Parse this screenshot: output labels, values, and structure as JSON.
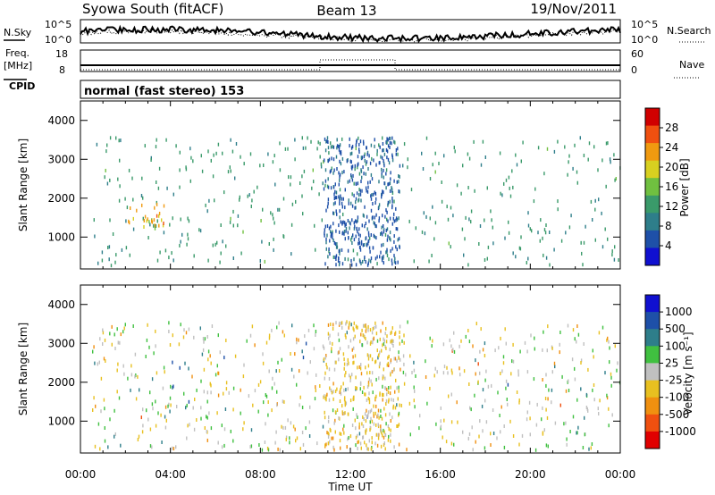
{
  "header": {
    "station": "Syowa South (fitACF)",
    "beam": "Beam 13",
    "date": "19/Nov/2011"
  },
  "top_panels": {
    "nsky_label": "N.Sky",
    "nsky_ticks": [
      "10^5",
      "10^0"
    ],
    "nsearch_label": "N.Search",
    "nsearch_ticks": [
      "10^5",
      "10^0"
    ],
    "freq_label": "Freq.",
    "freq_unit": "[MHz]",
    "freq_ticks": [
      "18",
      "8"
    ],
    "nave_label": "Nave",
    "nave_ticks": [
      "60",
      "0"
    ],
    "cpid_label": "CPID",
    "cpid_text": "normal (fast stereo) 153"
  },
  "colors": {
    "power_scale": [
      "#1010d0",
      "#1e50a8",
      "#2e7e8a",
      "#3a9a6a",
      "#70c040",
      "#d8d020",
      "#f09a10",
      "#f05010",
      "#d00000"
    ],
    "velocity_scale": [
      "#1010d0",
      "#1e50a8",
      "#2e7e8a",
      "#40c040",
      "#c0c0c0",
      "#e8c020",
      "#f09010",
      "#f05010",
      "#e00000"
    ]
  },
  "chart_data": [
    {
      "type": "heatmap",
      "name": "power",
      "ylabel": "Slant Range [km]",
      "xlabel": "Time UT",
      "x_ticks": [
        "00:00",
        "04:00",
        "08:00",
        "12:00",
        "16:00",
        "20:00",
        "00:00"
      ],
      "y_ticks": [
        "1000",
        "2000",
        "3000",
        "4000"
      ],
      "xlim_hours": [
        0,
        24
      ],
      "ylim_km": [
        180,
        4500
      ],
      "colorbar_label": "Power [dB]",
      "colorbar_ticks": [
        "28",
        "24",
        "20",
        "16",
        "12",
        "8",
        "4"
      ],
      "colorbar_range": [
        0,
        30
      ],
      "regions": [
        {
          "t0": 0.5,
          "t1": 24,
          "r0": 300,
          "r1": 3600,
          "level": 11,
          "spread": 4,
          "density": 0.55
        },
        {
          "t0": 2.0,
          "t1": 3.8,
          "r0": 1300,
          "r1": 1900,
          "level": 20,
          "spread": 6,
          "density": 2.5
        },
        {
          "t0": 10.8,
          "t1": 14.2,
          "r0": 300,
          "r1": 3600,
          "level": 6,
          "spread": 3,
          "density": 4.0
        }
      ]
    },
    {
      "type": "heatmap",
      "name": "velocity",
      "ylabel": "Slant Range [km]",
      "xlabel": "Time UT",
      "x_ticks": [
        "00:00",
        "04:00",
        "08:00",
        "12:00",
        "16:00",
        "20:00",
        "00:00"
      ],
      "y_ticks": [
        "1000",
        "2000",
        "3000",
        "4000"
      ],
      "xlim_hours": [
        0,
        24
      ],
      "ylim_km": [
        180,
        4500
      ],
      "colorbar_label": "Velocity [m s⁻¹]",
      "colorbar_ticks": [
        "1000",
        "500",
        "100",
        "25",
        "-25",
        "-100",
        "-500",
        "-1000"
      ],
      "colorbar_range": [
        -1200,
        1200
      ],
      "regions": [
        {
          "t0": 0.5,
          "t1": 24,
          "r0": 300,
          "r1": 3600,
          "level": 0,
          "spread": 900,
          "density": 0.85
        },
        {
          "t0": 10.8,
          "t1": 14.2,
          "r0": 300,
          "r1": 3600,
          "level": -200,
          "spread": 500,
          "density": 3.0
        }
      ]
    }
  ]
}
